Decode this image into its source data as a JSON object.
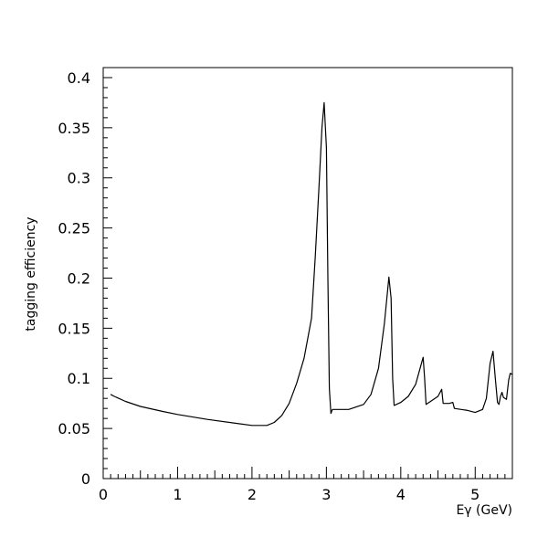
{
  "chart_data": {
    "type": "line",
    "title": "",
    "xlabel": "Eγ (GeV)",
    "ylabel": "tagging efficiency",
    "xlim": [
      0,
      5.5
    ],
    "ylim": [
      0,
      0.41
    ],
    "grid": false,
    "x_ticks": [
      {
        "value": 0,
        "label": "0"
      },
      {
        "value": 1,
        "label": "1"
      },
      {
        "value": 2,
        "label": "2"
      },
      {
        "value": 3,
        "label": "3"
      },
      {
        "value": 4,
        "label": "4"
      },
      {
        "value": 5,
        "label": "5"
      }
    ],
    "y_ticks": [
      {
        "value": 0,
        "label": "0"
      },
      {
        "value": 0.05,
        "label": "0.05"
      },
      {
        "value": 0.1,
        "label": "0.1"
      },
      {
        "value": 0.15,
        "label": "0.15"
      },
      {
        "value": 0.2,
        "label": "0.2"
      },
      {
        "value": 0.25,
        "label": "0.25"
      },
      {
        "value": 0.3,
        "label": "0.3"
      },
      {
        "value": 0.35,
        "label": "0.35"
      },
      {
        "value": 0.4,
        "label": "0.4"
      }
    ],
    "series": [
      {
        "color": "#000000",
        "points": [
          [
            0.1,
            0.084
          ],
          [
            0.15,
            0.082
          ],
          [
            0.3,
            0.077
          ],
          [
            0.5,
            0.072
          ],
          [
            0.8,
            0.067
          ],
          [
            1.0,
            0.064
          ],
          [
            1.4,
            0.059
          ],
          [
            1.8,
            0.055
          ],
          [
            2.0,
            0.053
          ],
          [
            2.2,
            0.053
          ],
          [
            2.3,
            0.056
          ],
          [
            2.4,
            0.063
          ],
          [
            2.5,
            0.075
          ],
          [
            2.6,
            0.095
          ],
          [
            2.7,
            0.12
          ],
          [
            2.8,
            0.16
          ],
          [
            2.85,
            0.22
          ],
          [
            2.9,
            0.29
          ],
          [
            2.94,
            0.35
          ],
          [
            2.97,
            0.375
          ],
          [
            3.0,
            0.33
          ],
          [
            3.02,
            0.2
          ],
          [
            3.04,
            0.09
          ],
          [
            3.06,
            0.065
          ],
          [
            3.08,
            0.069
          ],
          [
            3.3,
            0.069
          ],
          [
            3.5,
            0.074
          ],
          [
            3.6,
            0.084
          ],
          [
            3.7,
            0.11
          ],
          [
            3.78,
            0.155
          ],
          [
            3.84,
            0.201
          ],
          [
            3.87,
            0.18
          ],
          [
            3.89,
            0.1
          ],
          [
            3.91,
            0.073
          ],
          [
            4.0,
            0.076
          ],
          [
            4.1,
            0.082
          ],
          [
            4.2,
            0.094
          ],
          [
            4.3,
            0.121
          ],
          [
            4.32,
            0.1
          ],
          [
            4.34,
            0.074
          ],
          [
            4.4,
            0.077
          ],
          [
            4.5,
            0.082
          ],
          [
            4.55,
            0.089
          ],
          [
            4.57,
            0.075
          ],
          [
            4.65,
            0.075
          ],
          [
            4.7,
            0.076
          ],
          [
            4.72,
            0.07
          ],
          [
            4.9,
            0.068
          ],
          [
            5.0,
            0.066
          ],
          [
            5.1,
            0.069
          ],
          [
            5.15,
            0.08
          ],
          [
            5.2,
            0.115
          ],
          [
            5.24,
            0.127
          ],
          [
            5.27,
            0.1
          ],
          [
            5.3,
            0.076
          ],
          [
            5.32,
            0.074
          ],
          [
            5.34,
            0.082
          ],
          [
            5.36,
            0.086
          ],
          [
            5.38,
            0.081
          ],
          [
            5.42,
            0.079
          ],
          [
            5.45,
            0.098
          ],
          [
            5.47,
            0.105
          ],
          [
            5.5,
            0.104
          ]
        ]
      }
    ]
  }
}
